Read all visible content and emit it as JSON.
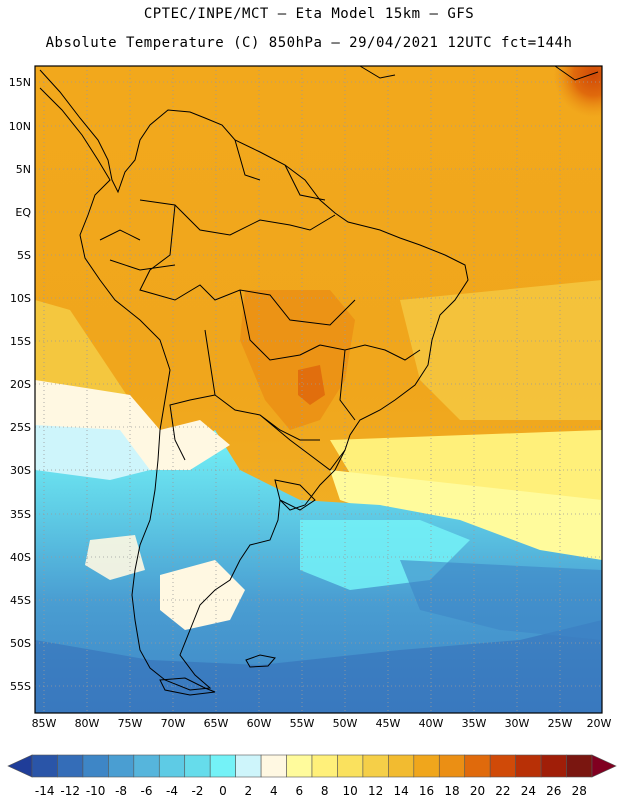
{
  "header": {
    "line1": "CPTEC/INPE/MCT —  Eta Model 15km — GFS",
    "line2": "Absolute Temperature (C) 850hPa — 29/04/2021 12UTC fct=144h"
  },
  "map": {
    "lat_labels": [
      "15N",
      "10N",
      "5N",
      "EQ",
      "5S",
      "10S",
      "15S",
      "20S",
      "25S",
      "30S",
      "35S",
      "40S",
      "45S",
      "50S",
      "55S"
    ],
    "lon_labels": [
      "85W",
      "80W",
      "75W",
      "70W",
      "65W",
      "60W",
      "55W",
      "50W",
      "45W",
      "40W",
      "35W",
      "30W",
      "25W",
      "20W"
    ]
  },
  "colorbar": {
    "labels": [
      "-14",
      "-12",
      "-10",
      "-8",
      "-6",
      "-4",
      "-2",
      "0",
      "2",
      "4",
      "6",
      "8",
      "10",
      "12",
      "14",
      "16",
      "18",
      "20",
      "22",
      "24",
      "26",
      "28"
    ],
    "colors": [
      "#1f3d99",
      "#2a55a8",
      "#346db8",
      "#3e86c6",
      "#4a9ed2",
      "#56b5dc",
      "#5ecbe5",
      "#66dceb",
      "#74f2f7",
      "#cef5fb",
      "#fff8e2",
      "#fffb9c",
      "#fff07a",
      "#fae15e",
      "#f5cf48",
      "#f2bb30",
      "#f0a61c",
      "#eb8f14",
      "#e06a0c",
      "#d04a08",
      "#b83006",
      "#a01e08",
      "#7a1610",
      "#800020"
    ]
  }
}
